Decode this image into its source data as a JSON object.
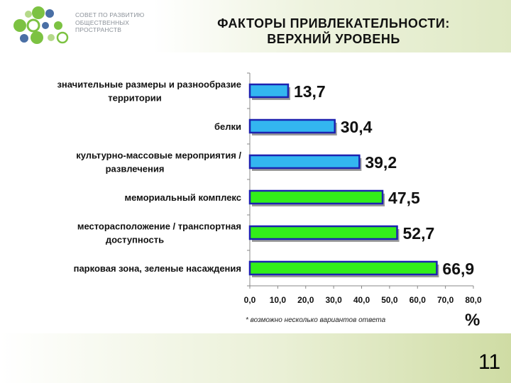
{
  "header": {
    "logo_lines": [
      "СОВЕТ ПО РАЗВИТИЮ",
      "ОБЩЕСТВЕННЫХ",
      "ПРОСТРАНСТВ"
    ],
    "title_lines": [
      "ФАКТОРЫ ПРИВЛЕКАТЕЛЬНОСТИ:",
      "ВЕРХНИЙ УРОВЕНЬ"
    ]
  },
  "chart_data": {
    "type": "bar",
    "orientation": "horizontal",
    "categories": [
      "значительные размеры и разнообразие территории",
      "белки",
      "культурно-массовые мероприятия / развлечения",
      "мемориальный комплекс",
      "месторасположение / транспортная доступность",
      "парковая зона, зеленые насаждения"
    ],
    "category_label_lines": [
      [
        "значительные размеры и разнообразие",
        "территории"
      ],
      [
        "белки"
      ],
      [
        "культурно-массовые мероприятия /",
        "развлечения"
      ],
      [
        "мемориальный комплекс"
      ],
      [
        "месторасположение / транспортная",
        "доступность"
      ],
      [
        "парковая зона, зеленые насаждения"
      ]
    ],
    "values": [
      13.7,
      30.4,
      39.2,
      47.5,
      52.7,
      66.9
    ],
    "value_labels": [
      "13,7",
      "30,4",
      "39,2",
      "47,5",
      "52,7",
      "66,9"
    ],
    "bar_colors": [
      "#33b6f0",
      "#33b6f0",
      "#33b6f0",
      "#33ee1a",
      "#33ee1a",
      "#33ee1a"
    ],
    "bar_border_color": "#1c22b0",
    "xlim": [
      0,
      80
    ],
    "x_ticks": [
      "0,0",
      "10,0",
      "20,0",
      "30,0",
      "40,0",
      "50,0",
      "60,0",
      "70,0",
      "80,0"
    ],
    "unit_label": "%",
    "grid": false
  },
  "note": "* возможно несколько вариантов ответа",
  "page_number": "11"
}
